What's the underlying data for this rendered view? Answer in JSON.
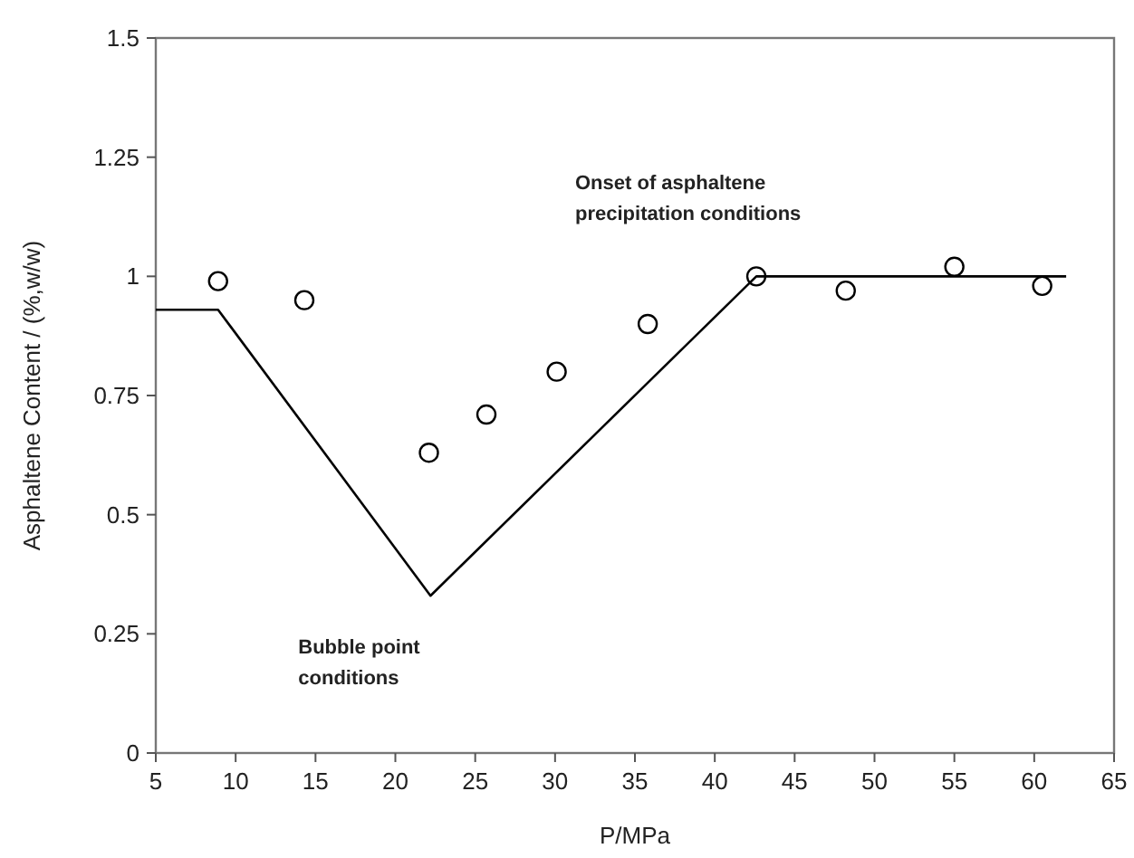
{
  "chart_data": {
    "type": "scatter",
    "xlabel": "P/MPa",
    "ylabel": "Asphaltene Content / (%,w/w)",
    "xlim": [
      5,
      65
    ],
    "xticks": [
      5,
      10,
      15,
      20,
      25,
      30,
      35,
      40,
      45,
      50,
      55,
      60,
      65
    ],
    "ylim": [
      0,
      1.5
    ],
    "yticks": [
      0,
      0.25,
      0.5,
      0.75,
      1,
      1.25,
      1.5
    ],
    "grid": false,
    "series": [
      {
        "marker": "circle",
        "color": "#000000",
        "x": [
          8.9,
          14.3,
          22.1,
          25.7,
          30.1,
          35.8,
          42.6,
          48.2,
          55.0,
          60.5
        ],
        "values": [
          0.99,
          0.95,
          0.63,
          0.71,
          0.8,
          0.9,
          1.0,
          0.97,
          1.02,
          0.98
        ]
      },
      {
        "type": "line",
        "marker": "none",
        "line_style": "solid",
        "color": "#000000",
        "x": [
          5,
          8.9,
          22.2,
          42.6,
          62
        ],
        "values": [
          0.93,
          0.93,
          0.33,
          1.0,
          1.0
        ]
      }
    ],
    "annotations": [
      {
        "text": "Bubble point\nconditions",
        "x": 22.2,
        "y": 0.33
      },
      {
        "text": "Onset of asphaltene\nprecipitation conditions",
        "x": 42.6,
        "y": 1.0
      }
    ]
  }
}
